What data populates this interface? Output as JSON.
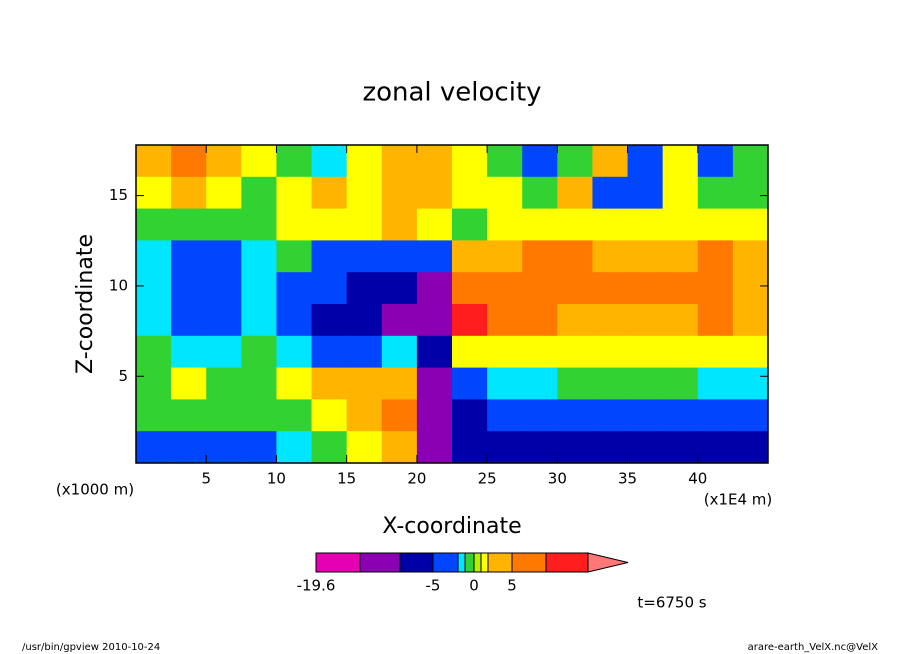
{
  "chart_data": {
    "type": "contour",
    "title": "zonal velocity",
    "x_label": "X-coordinate",
    "y_label": "Z-coordinate",
    "x_unit": "(x1E4 m)",
    "y_unit": "(x1000 m)",
    "time_label": "t=6750 s",
    "footer_left": "/usr/bin/gpview  2010-10-24",
    "footer_right": "arare-earth_VelX.nc@VelX",
    "xlim": [
      0,
      45
    ],
    "ylim": [
      0.2,
      17.8
    ],
    "xticks": [
      5,
      10,
      15,
      20,
      25,
      30,
      35,
      40
    ],
    "yticks": [
      5,
      10,
      15
    ],
    "levels": [
      -19.6,
      -15,
      -10,
      -5,
      -2,
      -1,
      0,
      1,
      2,
      5,
      10,
      15
    ],
    "colorbar_ticks": [
      -19.6,
      -5,
      0,
      5
    ],
    "colors": [
      "#e600b4",
      "#8c00b4",
      "#0000a8",
      "#0046ff",
      "#00e6ff",
      "#32d232",
      "#b4f000",
      "#ffff00",
      "#ffb400",
      "#ff7800",
      "#ff1e1e",
      "#ff7878"
    ],
    "z": [
      [
        3,
        7,
        3,
        1.5,
        -0.5,
        -1.5,
        1.5,
        3,
        3,
        1.5,
        -0.5,
        -3,
        -0.5,
        3,
        -3,
        1.5,
        -3,
        -0.5
      ],
      [
        1.5,
        3,
        1.5,
        -0.5,
        1.5,
        3,
        1.5,
        3,
        3,
        1.5,
        1.5,
        -0.5,
        3,
        -3,
        -3,
        1.5,
        -0.5,
        -0.5
      ],
      [
        -0.5,
        -0.5,
        -0.5,
        -0.5,
        1.5,
        1.5,
        1.5,
        3,
        1.5,
        -0.5,
        1.5,
        1.5,
        1.5,
        1.5,
        1.5,
        1.5,
        1.5,
        1.5
      ],
      [
        -1.5,
        -3,
        -3,
        -1.5,
        -0.5,
        -3,
        -3,
        -3,
        -3,
        3,
        3,
        7,
        7,
        3,
        3,
        3,
        7,
        3
      ],
      [
        -1.5,
        -3,
        -3,
        -1.5,
        -3,
        -3,
        -7,
        -7,
        -12,
        7,
        7,
        7,
        7,
        7,
        7,
        7,
        7,
        3
      ],
      [
        -1.5,
        -3,
        -3,
        -1.5,
        -3,
        -7,
        -7,
        -12,
        -12,
        12,
        7,
        7,
        3,
        3,
        3,
        3,
        7,
        3
      ],
      [
        -0.5,
        -1.5,
        -1.5,
        -0.5,
        -1.5,
        -3,
        -3,
        -1.5,
        -7,
        1.5,
        1.5,
        1.5,
        1.5,
        1.5,
        1.5,
        1.5,
        1.5,
        1.5
      ],
      [
        -0.5,
        1.5,
        -0.5,
        -0.5,
        1.5,
        3,
        3,
        3,
        -12,
        -3,
        -1.5,
        -1.5,
        -0.5,
        -0.5,
        -0.5,
        -0.5,
        -1.5,
        -1.5
      ],
      [
        -0.5,
        -0.5,
        -0.5,
        -0.5,
        -0.5,
        1.5,
        3,
        7,
        -12,
        -7,
        -3,
        -3,
        -3,
        -3,
        -3,
        -3,
        -3,
        -3
      ],
      [
        -3,
        -3,
        -3,
        -3,
        -1.5,
        -0.5,
        1.5,
        3,
        -12,
        -7,
        -7,
        -7,
        -7,
        -7,
        -7,
        -7,
        -7,
        -7
      ]
    ]
  }
}
